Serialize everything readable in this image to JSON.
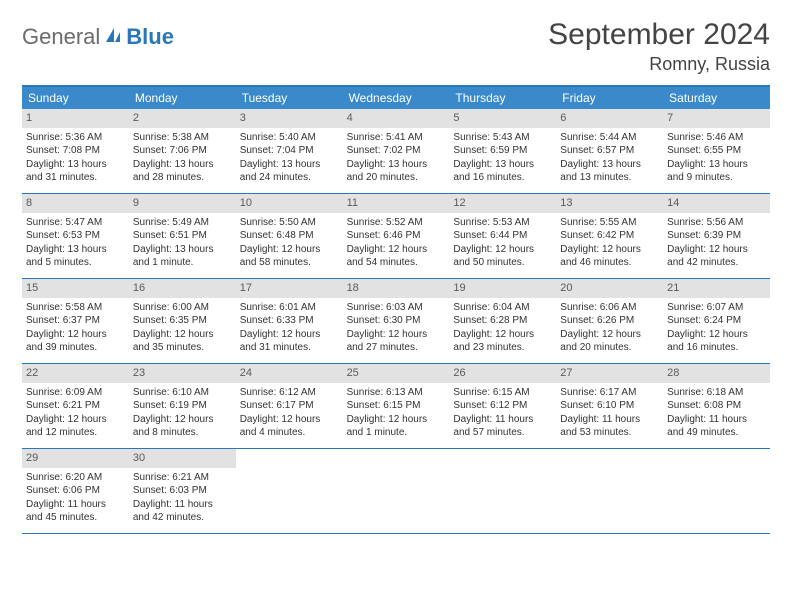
{
  "logo": {
    "general": "General",
    "blue": "Blue"
  },
  "title": "September 2024",
  "location": "Romny, Russia",
  "colors": {
    "header_bar": "#3a8acb",
    "border": "#2a77b8",
    "daynum_bg": "#e2e2e2",
    "text": "#333333",
    "logo_gray": "#6b6b6b",
    "logo_blue": "#2a77b8",
    "background": "#ffffff"
  },
  "weekdays": [
    "Sunday",
    "Monday",
    "Tuesday",
    "Wednesday",
    "Thursday",
    "Friday",
    "Saturday"
  ],
  "weeks": [
    [
      {
        "n": "1",
        "sr": "5:36 AM",
        "ss": "7:08 PM",
        "dl": "13 hours and 31 minutes."
      },
      {
        "n": "2",
        "sr": "5:38 AM",
        "ss": "7:06 PM",
        "dl": "13 hours and 28 minutes."
      },
      {
        "n": "3",
        "sr": "5:40 AM",
        "ss": "7:04 PM",
        "dl": "13 hours and 24 minutes."
      },
      {
        "n": "4",
        "sr": "5:41 AM",
        "ss": "7:02 PM",
        "dl": "13 hours and 20 minutes."
      },
      {
        "n": "5",
        "sr": "5:43 AM",
        "ss": "6:59 PM",
        "dl": "13 hours and 16 minutes."
      },
      {
        "n": "6",
        "sr": "5:44 AM",
        "ss": "6:57 PM",
        "dl": "13 hours and 13 minutes."
      },
      {
        "n": "7",
        "sr": "5:46 AM",
        "ss": "6:55 PM",
        "dl": "13 hours and 9 minutes."
      }
    ],
    [
      {
        "n": "8",
        "sr": "5:47 AM",
        "ss": "6:53 PM",
        "dl": "13 hours and 5 minutes."
      },
      {
        "n": "9",
        "sr": "5:49 AM",
        "ss": "6:51 PM",
        "dl": "13 hours and 1 minute."
      },
      {
        "n": "10",
        "sr": "5:50 AM",
        "ss": "6:48 PM",
        "dl": "12 hours and 58 minutes."
      },
      {
        "n": "11",
        "sr": "5:52 AM",
        "ss": "6:46 PM",
        "dl": "12 hours and 54 minutes."
      },
      {
        "n": "12",
        "sr": "5:53 AM",
        "ss": "6:44 PM",
        "dl": "12 hours and 50 minutes."
      },
      {
        "n": "13",
        "sr": "5:55 AM",
        "ss": "6:42 PM",
        "dl": "12 hours and 46 minutes."
      },
      {
        "n": "14",
        "sr": "5:56 AM",
        "ss": "6:39 PM",
        "dl": "12 hours and 42 minutes."
      }
    ],
    [
      {
        "n": "15",
        "sr": "5:58 AM",
        "ss": "6:37 PM",
        "dl": "12 hours and 39 minutes."
      },
      {
        "n": "16",
        "sr": "6:00 AM",
        "ss": "6:35 PM",
        "dl": "12 hours and 35 minutes."
      },
      {
        "n": "17",
        "sr": "6:01 AM",
        "ss": "6:33 PM",
        "dl": "12 hours and 31 minutes."
      },
      {
        "n": "18",
        "sr": "6:03 AM",
        "ss": "6:30 PM",
        "dl": "12 hours and 27 minutes."
      },
      {
        "n": "19",
        "sr": "6:04 AM",
        "ss": "6:28 PM",
        "dl": "12 hours and 23 minutes."
      },
      {
        "n": "20",
        "sr": "6:06 AM",
        "ss": "6:26 PM",
        "dl": "12 hours and 20 minutes."
      },
      {
        "n": "21",
        "sr": "6:07 AM",
        "ss": "6:24 PM",
        "dl": "12 hours and 16 minutes."
      }
    ],
    [
      {
        "n": "22",
        "sr": "6:09 AM",
        "ss": "6:21 PM",
        "dl": "12 hours and 12 minutes."
      },
      {
        "n": "23",
        "sr": "6:10 AM",
        "ss": "6:19 PM",
        "dl": "12 hours and 8 minutes."
      },
      {
        "n": "24",
        "sr": "6:12 AM",
        "ss": "6:17 PM",
        "dl": "12 hours and 4 minutes."
      },
      {
        "n": "25",
        "sr": "6:13 AM",
        "ss": "6:15 PM",
        "dl": "12 hours and 1 minute."
      },
      {
        "n": "26",
        "sr": "6:15 AM",
        "ss": "6:12 PM",
        "dl": "11 hours and 57 minutes."
      },
      {
        "n": "27",
        "sr": "6:17 AM",
        "ss": "6:10 PM",
        "dl": "11 hours and 53 minutes."
      },
      {
        "n": "28",
        "sr": "6:18 AM",
        "ss": "6:08 PM",
        "dl": "11 hours and 49 minutes."
      }
    ],
    [
      {
        "n": "29",
        "sr": "6:20 AM",
        "ss": "6:06 PM",
        "dl": "11 hours and 45 minutes."
      },
      {
        "n": "30",
        "sr": "6:21 AM",
        "ss": "6:03 PM",
        "dl": "11 hours and 42 minutes."
      },
      null,
      null,
      null,
      null,
      null
    ]
  ],
  "labels": {
    "sunrise": "Sunrise:",
    "sunset": "Sunset:",
    "daylight": "Daylight:"
  }
}
